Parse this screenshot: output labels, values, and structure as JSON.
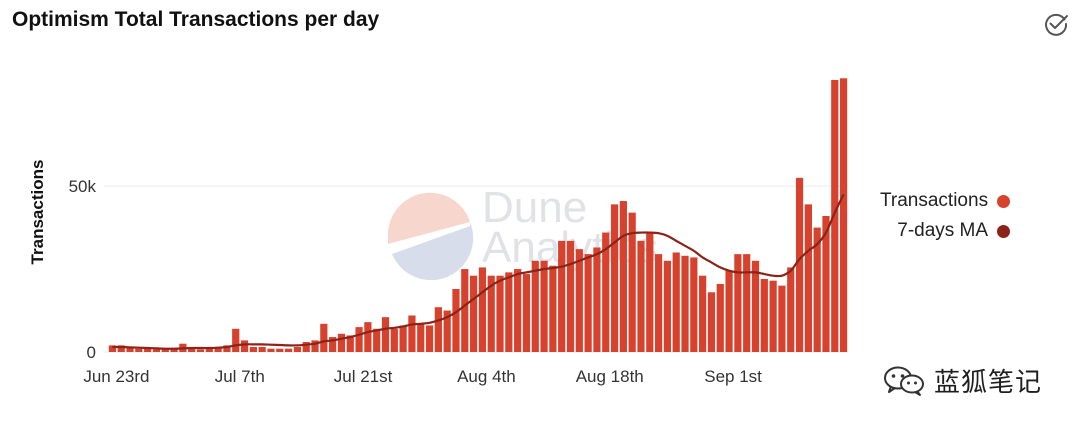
{
  "header": {
    "title": "Optimism Total Transactions per day"
  },
  "icons": {
    "action": "check-circle-icon",
    "watermark": "wechat-icon"
  },
  "watermark": {
    "text": "蓝狐笔记"
  },
  "dune": {
    "line1": "Dune",
    "line2": "Analytics"
  },
  "chart_data": {
    "type": "bar",
    "title": "Optimism Total Transactions per day",
    "xlabel": "",
    "ylabel": "Transactions",
    "ylim": [
      0,
      85000
    ],
    "yticks": [
      0,
      50000
    ],
    "ytick_labels": [
      "0",
      "50k"
    ],
    "x_start": "Jun 23rd",
    "xtick_labels": [
      "Jun 23rd",
      "Jul 7th",
      "Jul 21st",
      "Aug 4th",
      "Aug 18th",
      "Sep 1st"
    ],
    "xtick_index": [
      0,
      14,
      28,
      42,
      56,
      70
    ],
    "grid": true,
    "legend_position": "right",
    "series": [
      {
        "name": "Transactions",
        "type": "bar",
        "color": "#d6422d",
        "values": [
          2000,
          2000,
          1500,
          1000,
          1000,
          800,
          1000,
          1000,
          2500,
          1500,
          800,
          1000,
          1200,
          2000,
          7000,
          3500,
          1500,
          1500,
          1000,
          1000,
          1000,
          1500,
          3000,
          3500,
          8500,
          4500,
          5500,
          5000,
          7500,
          9000,
          7000,
          10500,
          7000,
          8000,
          11000,
          8500,
          8000,
          13500,
          12500,
          19000,
          25000,
          23000,
          25500,
          23000,
          23000,
          24000,
          25000,
          23500,
          27500,
          27500,
          26000,
          33500,
          33500,
          31000,
          29500,
          31500,
          36000,
          44500,
          45500,
          42000,
          33500,
          36000,
          29500,
          27500,
          30000,
          29000,
          28500,
          23000,
          18000,
          20500,
          24500,
          29500,
          29500,
          27500,
          22000,
          21500,
          20000,
          25500,
          52500,
          44500,
          37500,
          41000,
          82000,
          82500
        ],
        "values_note": "daily values from Jun 23rd"
      },
      {
        "name": "7-days MA",
        "type": "line",
        "color": "#8c2318",
        "values": [
          1500,
          1500,
          1400,
          1300,
          1200,
          1100,
          1000,
          1000,
          1100,
          1200,
          1200,
          1200,
          1300,
          1500,
          2000,
          2300,
          2300,
          2300,
          2200,
          2100,
          2000,
          2000,
          2200,
          2500,
          3200,
          3500,
          4000,
          4500,
          5200,
          6000,
          6500,
          7000,
          7300,
          7700,
          8300,
          8500,
          8800,
          9500,
          10500,
          12000,
          14000,
          16000,
          18000,
          20000,
          21500,
          22500,
          23500,
          24000,
          24500,
          25000,
          25300,
          25700,
          26500,
          27500,
          28500,
          29500,
          31000,
          33000,
          35000,
          35800,
          36000,
          36000,
          35800,
          35000,
          33500,
          32000,
          30500,
          28500,
          27000,
          25500,
          24500,
          24000,
          24000,
          24000,
          23500,
          23000,
          23000,
          24500,
          28000,
          30500,
          32500,
          36000,
          42000,
          47500
        ]
      }
    ]
  }
}
